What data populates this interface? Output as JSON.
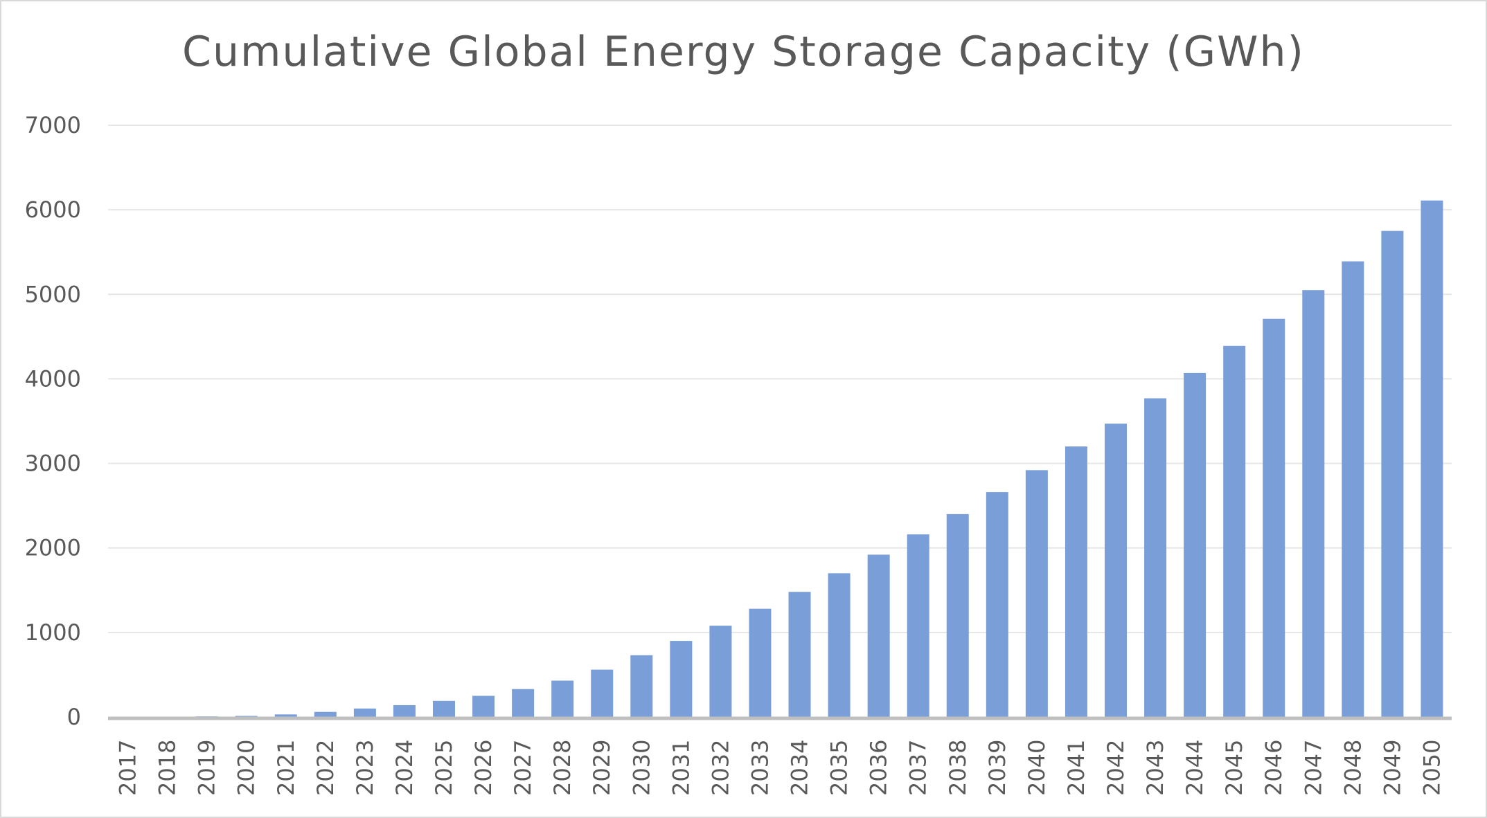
{
  "chart_data": {
    "type": "bar",
    "title": "Cumulative Global Energy Storage Capacity (GWh)",
    "xlabel": "",
    "ylabel": "",
    "ylim": [
      0,
      7000
    ],
    "yticks": [
      0,
      1000,
      2000,
      3000,
      4000,
      5000,
      6000,
      7000
    ],
    "grid": true,
    "legend": "none",
    "bar_color": "#7A9FD8",
    "categories": [
      "2017",
      "2018",
      "2019",
      "2020",
      "2021",
      "2022",
      "2023",
      "2024",
      "2025",
      "2026",
      "2027",
      "2028",
      "2029",
      "2030",
      "2031",
      "2032",
      "2033",
      "2034",
      "2035",
      "2036",
      "2037",
      "2038",
      "2039",
      "2040",
      "2041",
      "2042",
      "2043",
      "2044",
      "2045",
      "2046",
      "2047",
      "2048",
      "2049",
      "2050"
    ],
    "values": [
      2,
      4,
      7,
      12,
      30,
      60,
      100,
      140,
      190,
      250,
      330,
      430,
      560,
      730,
      900,
      1080,
      1280,
      1480,
      1700,
      1920,
      2160,
      2400,
      2660,
      2920,
      3200,
      3470,
      3770,
      4070,
      4390,
      4710,
      5050,
      5390,
      5750,
      6110
    ]
  }
}
